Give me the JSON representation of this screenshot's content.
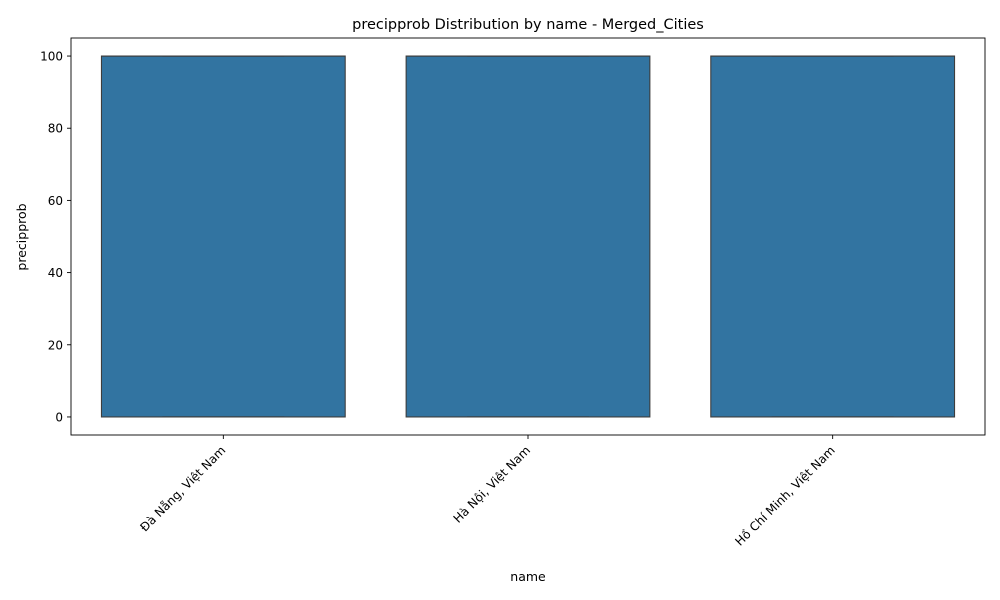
{
  "chart_data": {
    "type": "box",
    "title": "precipprob Distribution by name - Merged_Cities",
    "xlabel": "name",
    "ylabel": "precipprob",
    "ylim": [
      -5,
      105
    ],
    "yticks": [
      0,
      20,
      40,
      60,
      80,
      100
    ],
    "categories": [
      "Đà Nẵng, Việt Nam",
      "Hà Nội, Việt Nam",
      "Hồ Chí Minh, Việt Nam"
    ],
    "boxes": [
      {
        "category": "Đà Nẵng, Việt Nam",
        "min": 0,
        "q1": 0,
        "median": 100,
        "q3": 100,
        "max": 100
      },
      {
        "category": "Hà Nội, Việt Nam",
        "min": 0,
        "q1": 0,
        "median": 100,
        "q3": 100,
        "max": 100
      },
      {
        "category": "Hồ Chí Minh, Việt Nam",
        "min": 0,
        "q1": 0,
        "median": 100,
        "q3": 100,
        "max": 100
      }
    ],
    "box_color": "#3274a1",
    "edge_color": "#3d3d3d",
    "grid": false,
    "legend": "none"
  }
}
